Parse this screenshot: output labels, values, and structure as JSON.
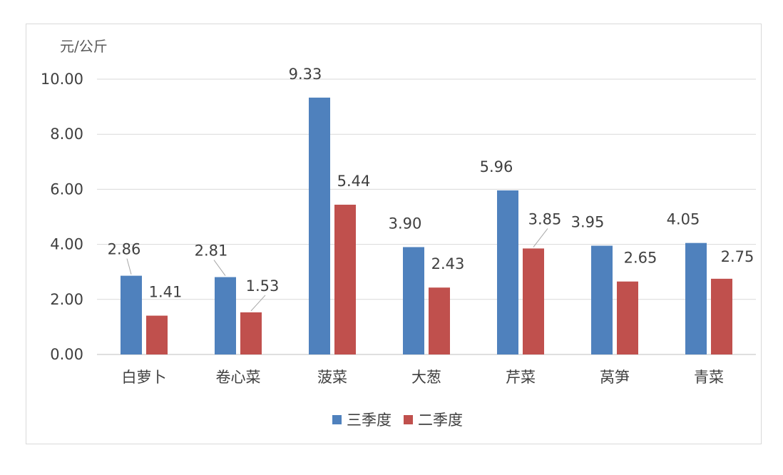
{
  "chart_data": {
    "type": "bar",
    "unit_label": "元/公斤",
    "categories": [
      "白萝卜",
      "卷心菜",
      "菠菜",
      "大葱",
      "芹菜",
      "莴笋",
      "青菜"
    ],
    "series": [
      {
        "name": "三季度",
        "color": "#4f81bd",
        "values": [
          2.86,
          2.81,
          9.33,
          3.9,
          5.96,
          3.95,
          4.05
        ],
        "labels": [
          "2.86",
          "2.81",
          "9.33",
          "3.90",
          "5.96",
          "3.95",
          "4.05"
        ]
      },
      {
        "name": "二季度",
        "color": "#c0504d",
        "values": [
          1.41,
          1.53,
          5.44,
          2.43,
          3.85,
          2.65,
          2.75
        ],
        "labels": [
          "1.41",
          "1.53",
          "5.44",
          "2.43",
          "3.85",
          "2.65",
          "2.75"
        ]
      }
    ],
    "ylim": [
      0,
      10
    ],
    "yticks": [
      "0.00",
      "2.00",
      "4.00",
      "6.00",
      "8.00",
      "10.00"
    ],
    "grid": true,
    "legend_position": "bottom"
  }
}
